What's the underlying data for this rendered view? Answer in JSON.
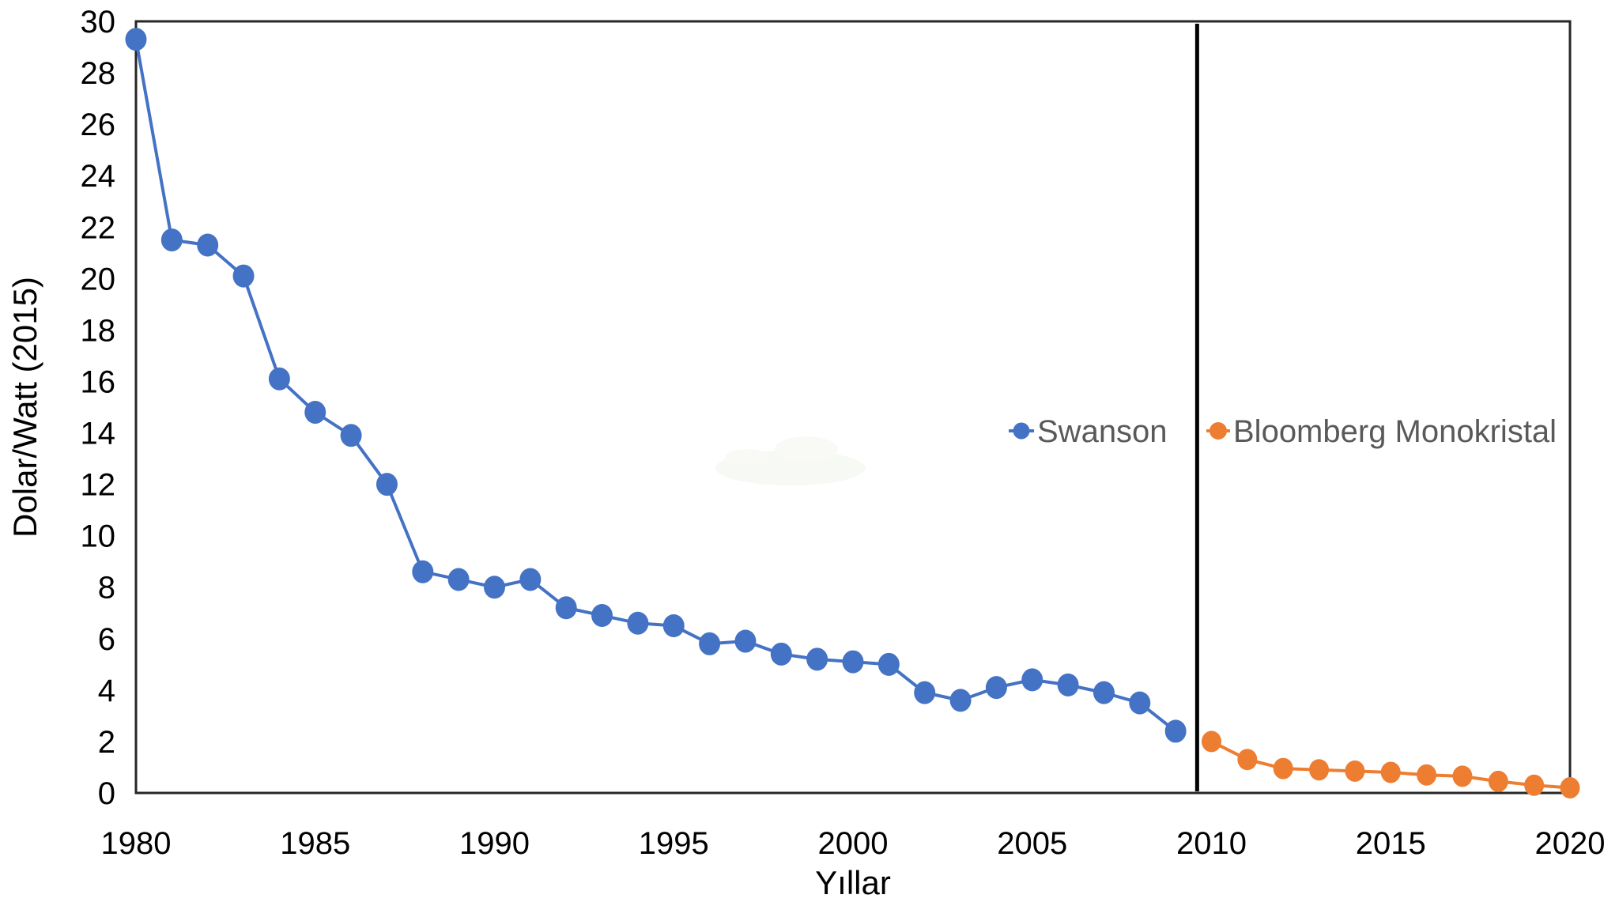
{
  "chart_data": {
    "type": "line",
    "title": "",
    "xlabel": "Yıllar",
    "ylabel": "Dolar/Watt (2015)",
    "xlim": [
      1980,
      2020
    ],
    "ylim": [
      0,
      30
    ],
    "grid": false,
    "legend_position": "inside-top-right",
    "x_ticks": [
      "1980",
      "1985",
      "1990",
      "1995",
      "2000",
      "2005",
      "2010",
      "2015",
      "2020"
    ],
    "y_ticks": [
      "0",
      "2",
      "4",
      "6",
      "8",
      "10",
      "12",
      "14",
      "16",
      "18",
      "20",
      "22",
      "24",
      "26",
      "28",
      "30"
    ],
    "series": [
      {
        "name": "Swanson",
        "color": "#4472C4",
        "x": [
          1980,
          1981,
          1982,
          1983,
          1984,
          1985,
          1986,
          1987,
          1988,
          1989,
          1990,
          1991,
          1992,
          1993,
          1994,
          1995,
          1996,
          1997,
          1998,
          1999,
          2000,
          2001,
          2002,
          2003,
          2004,
          2005,
          2006,
          2007,
          2008,
          2009
        ],
        "values": [
          29.3,
          21.5,
          21.3,
          20.1,
          16.1,
          14.8,
          13.9,
          12.0,
          8.6,
          8.3,
          8.0,
          8.3,
          7.2,
          6.9,
          6.6,
          6.5,
          5.8,
          5.9,
          5.4,
          5.2,
          5.1,
          5.0,
          3.9,
          3.6,
          4.1,
          4.4,
          4.2,
          3.9,
          3.5,
          2.4
        ]
      },
      {
        "name": "Bloomberg Monokristal",
        "color": "#ED7D31",
        "x": [
          2010,
          2011,
          2012,
          2013,
          2014,
          2015,
          2016,
          2017,
          2018,
          2019,
          2020
        ],
        "values": [
          2.0,
          1.3,
          0.95,
          0.9,
          0.85,
          0.8,
          0.7,
          0.65,
          0.45,
          0.3,
          0.2
        ]
      }
    ],
    "annotations": {
      "vertical_divider_year": 2009.6
    }
  },
  "colors": {
    "swanson": "#4472C4",
    "bloomberg": "#ED7D31",
    "legend_text": "#595959",
    "axis_text": "#000000",
    "plot_border": "#262626",
    "divider": "#000000",
    "background": "#ffffff"
  }
}
